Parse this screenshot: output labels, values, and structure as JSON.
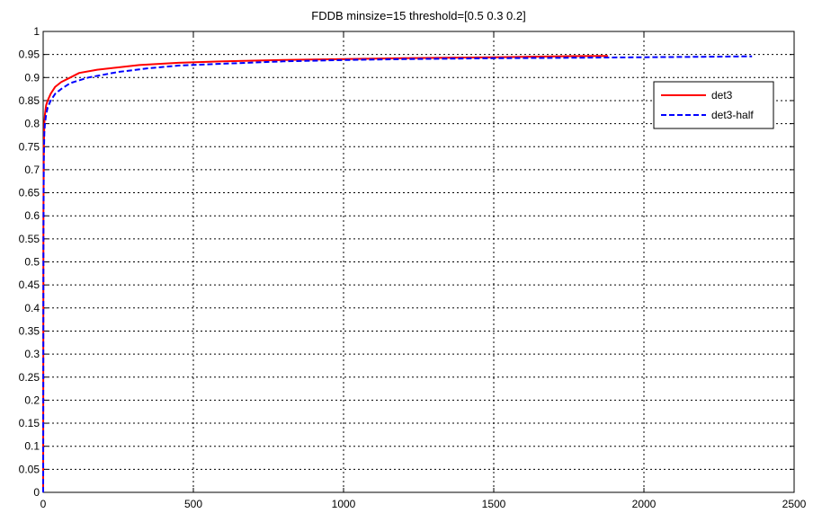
{
  "chart_data": {
    "type": "line",
    "title": "FDDB minsize=15 threshold=[0.5 0.3 0.2]",
    "xlabel": "",
    "ylabel": "",
    "xlim": [
      0,
      2500
    ],
    "ylim": [
      0,
      1
    ],
    "xticks": [
      0,
      500,
      1000,
      1500,
      2000,
      2500
    ],
    "xtick_labels": [
      "0",
      "500",
      "1000",
      "1500",
      "2000",
      "2500"
    ],
    "yticks": [
      0,
      0.05,
      0.1,
      0.15,
      0.2,
      0.25,
      0.3,
      0.35,
      0.4,
      0.45,
      0.5,
      0.55,
      0.6,
      0.65,
      0.7,
      0.75,
      0.8,
      0.85,
      0.9,
      0.95,
      1
    ],
    "ytick_labels": [
      "0",
      "0.05",
      "0.1",
      "0.15",
      "0.2",
      "0.25",
      "0.3",
      "0.35",
      "0.4",
      "0.45",
      "0.5",
      "0.55",
      "0.6",
      "0.65",
      "0.7",
      "0.75",
      "0.8",
      "0.85",
      "0.9",
      "0.95",
      "1"
    ],
    "grid": true,
    "legend_position": "top-right",
    "series": [
      {
        "name": "det3",
        "color": "#ff0000",
        "style": "solid",
        "x": [
          0,
          1,
          2,
          4,
          6,
          10,
          15,
          25,
          40,
          60,
          90,
          120,
          180,
          250,
          320,
          450,
          600,
          800,
          1000,
          1200,
          1500,
          1700,
          1880
        ],
        "y": [
          0,
          0.6,
          0.75,
          0.8,
          0.82,
          0.84,
          0.85,
          0.865,
          0.88,
          0.89,
          0.9,
          0.91,
          0.917,
          0.922,
          0.927,
          0.932,
          0.935,
          0.938,
          0.94,
          0.942,
          0.944,
          0.946,
          0.947
        ]
      },
      {
        "name": "det3-half",
        "color": "#0000ff",
        "style": "dashed",
        "x": [
          0,
          1,
          2,
          4,
          6,
          10,
          15,
          25,
          40,
          60,
          90,
          150,
          250,
          350,
          450,
          600,
          800,
          1000,
          1200,
          1500,
          1800,
          2000,
          2200,
          2360
        ],
        "y": [
          0,
          0.55,
          0.72,
          0.78,
          0.8,
          0.82,
          0.835,
          0.85,
          0.865,
          0.875,
          0.888,
          0.9,
          0.912,
          0.92,
          0.926,
          0.93,
          0.935,
          0.938,
          0.94,
          0.942,
          0.943,
          0.944,
          0.945,
          0.946
        ]
      }
    ]
  }
}
